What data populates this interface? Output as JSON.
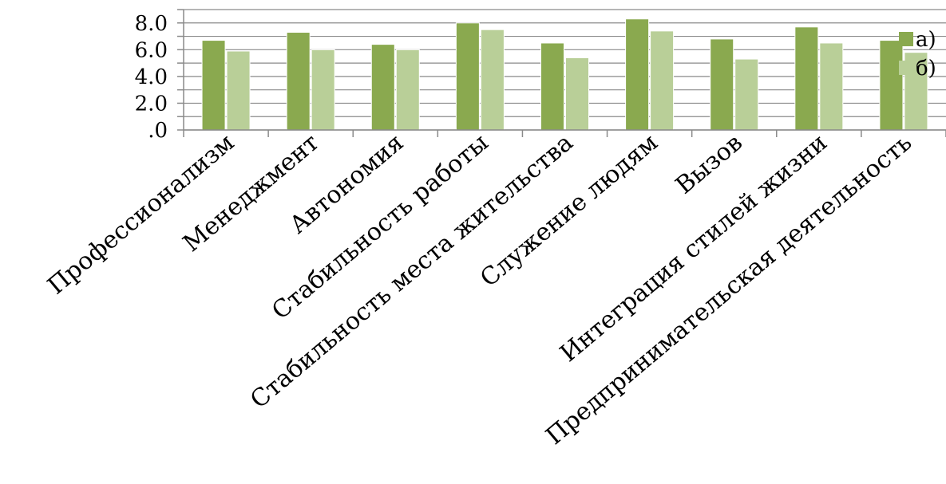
{
  "chart_data": {
    "type": "bar",
    "categories": [
      "Профессионализм",
      "Менеджмент",
      "Автономия",
      "Стабильность работы",
      "Стабильность места жительства",
      "Служение людям",
      "Вызов",
      "Интеграция стилей жизни",
      "Предпринимательская деятельность"
    ],
    "series": [
      {
        "name": "а)",
        "color": "#8aa94f",
        "values": [
          6.7,
          7.3,
          6.4,
          8.0,
          6.5,
          8.3,
          6.8,
          7.7,
          6.7
        ]
      },
      {
        "name": "б)",
        "color": "#b9cf98",
        "values": [
          5.9,
          6.0,
          6.0,
          7.5,
          5.4,
          7.4,
          5.3,
          6.5,
          5.8
        ]
      }
    ],
    "y_ticks": [
      ".0",
      "2.0",
      "4.0",
      "6.0",
      "8.0"
    ],
    "ylim": [
      0,
      9
    ],
    "grid": true,
    "legend": "right"
  }
}
